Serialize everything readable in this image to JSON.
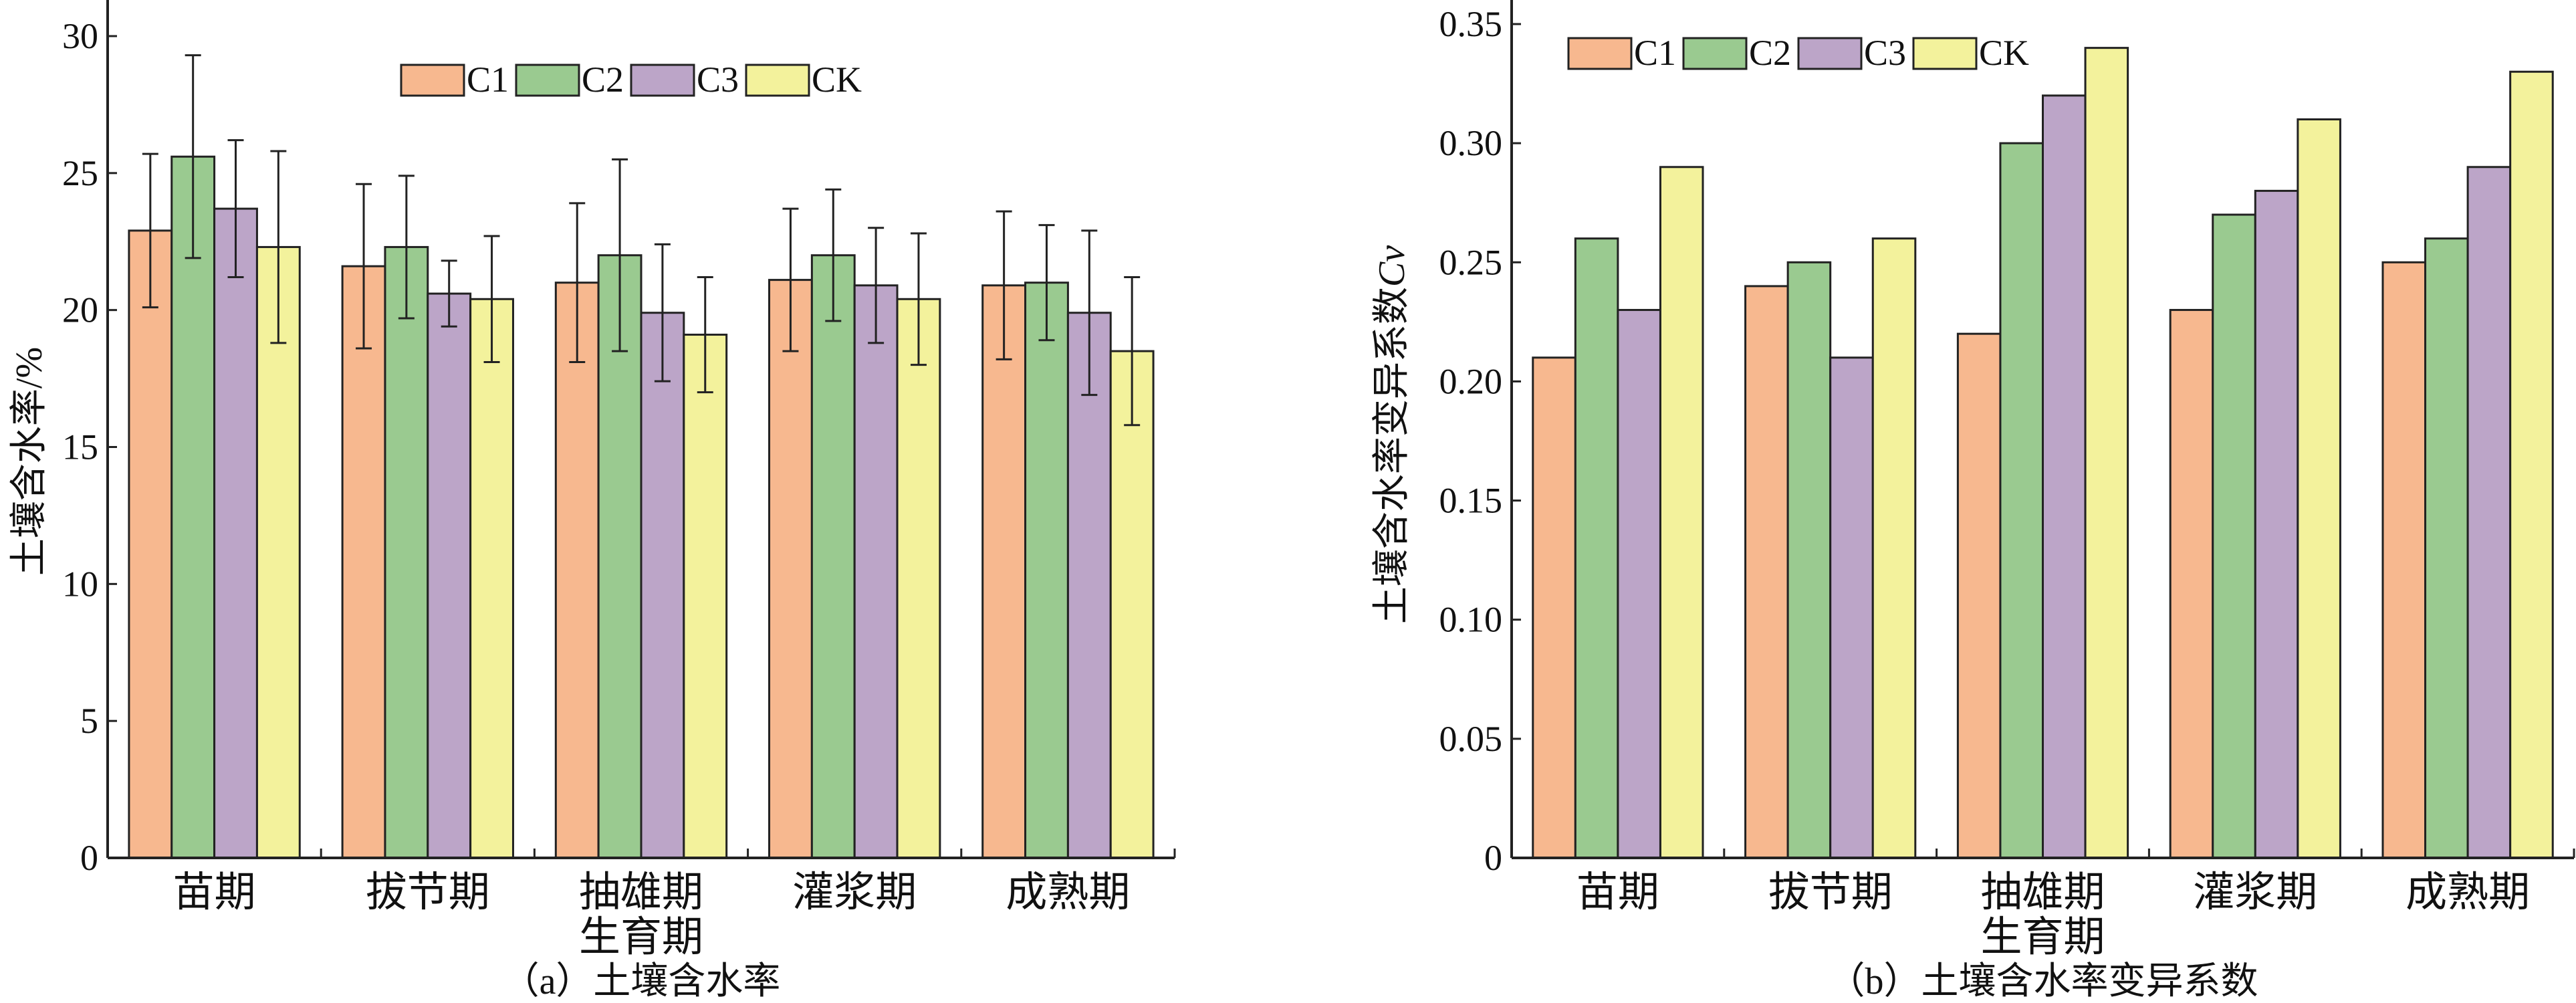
{
  "colors": {
    "C1": "#F7B88F",
    "C2": "#9ACA90",
    "C3": "#BCA5C8",
    "CK": "#F3F29C"
  },
  "chart_data": [
    {
      "type": "bar",
      "title": "（a）土壤含水率",
      "xlabel": "生育期",
      "ylabel": "土壤含水率/%",
      "categories": [
        "苗期",
        "拔节期",
        "抽雄期",
        "灌浆期",
        "成熟期"
      ],
      "ylim": [
        0,
        30
      ],
      "yticks": [
        0,
        5,
        10,
        15,
        20,
        25,
        30
      ],
      "ytick_labels": [
        "0",
        "5",
        "10",
        "15",
        "20",
        "25",
        "30"
      ],
      "legend": "top-center",
      "error_bars": true,
      "series": [
        {
          "name": "C1",
          "values": [
            22.9,
            21.6,
            21.0,
            21.1,
            20.9
          ],
          "errors": [
            2.8,
            3.0,
            2.9,
            2.6,
            2.7
          ]
        },
        {
          "name": "C2",
          "values": [
            25.6,
            22.3,
            22.0,
            22.0,
            21.0
          ],
          "errors": [
            3.7,
            2.6,
            3.5,
            2.4,
            2.1
          ]
        },
        {
          "name": "C3",
          "values": [
            23.7,
            20.6,
            19.9,
            20.9,
            19.9
          ],
          "errors": [
            2.5,
            1.2,
            2.5,
            2.1,
            3.0
          ]
        },
        {
          "name": "CK",
          "values": [
            22.3,
            20.4,
            19.1,
            20.4,
            18.5
          ],
          "errors": [
            3.5,
            2.3,
            2.1,
            2.4,
            2.7
          ]
        }
      ]
    },
    {
      "type": "bar",
      "title": "（b）土壤含水率变异系数",
      "xlabel": "生育期",
      "ylabel": "土壤含水率变异系数",
      "ylabel_italic": "Cv",
      "categories": [
        "苗期",
        "拔节期",
        "抽雄期",
        "灌浆期",
        "成熟期"
      ],
      "ylim": [
        0,
        0.35
      ],
      "yticks": [
        0,
        0.05,
        0.1,
        0.15,
        0.2,
        0.25,
        0.3,
        0.35
      ],
      "ytick_labels": [
        "0",
        "0.05",
        "0.10",
        "0.15",
        "0.20",
        "0.25",
        "0.30",
        "0.35"
      ],
      "legend": "top-left",
      "error_bars": false,
      "series": [
        {
          "name": "C1",
          "values": [
            0.21,
            0.24,
            0.22,
            0.23,
            0.25
          ]
        },
        {
          "name": "C2",
          "values": [
            0.26,
            0.25,
            0.3,
            0.27,
            0.26
          ]
        },
        {
          "name": "C3",
          "values": [
            0.23,
            0.21,
            0.32,
            0.28,
            0.29
          ]
        },
        {
          "name": "CK",
          "values": [
            0.29,
            0.26,
            0.34,
            0.31,
            0.33
          ]
        }
      ]
    }
  ]
}
